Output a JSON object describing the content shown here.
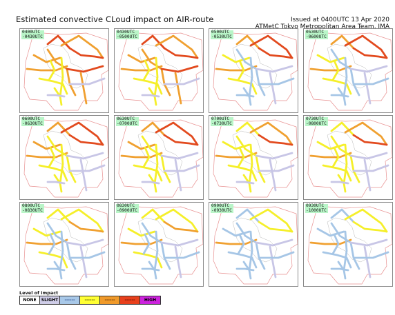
{
  "header": {
    "title": "Estimated convective CLoud impact on AIR-route",
    "issued": "Issued at 0400UTC 13 Apr 2020",
    "issuer": "ATMetC Tokyo Metropolitan Area Team, JMA"
  },
  "panels": [
    {
      "from": "0400UTC",
      "to": "-0430UTC",
      "levels": [
        "r",
        "o",
        "r",
        "o",
        "o",
        "y",
        "o",
        "r",
        "y",
        "o",
        "y",
        "s",
        "y",
        "s"
      ]
    },
    {
      "from": "0430UTC",
      "to": "-0500UTC",
      "levels": [
        "r",
        "o",
        "r",
        "o",
        "o",
        "y",
        "o",
        "r",
        "y",
        "o",
        "y",
        "s",
        "y",
        "s"
      ]
    },
    {
      "from": "0500UTC",
      "to": "-0530UTC",
      "levels": [
        "o",
        "r",
        "r",
        "y",
        "o",
        "y",
        "b",
        "s",
        "b",
        "s",
        "b",
        "b",
        "y",
        "b"
      ]
    },
    {
      "from": "0530UTC",
      "to": "-0600UTC",
      "levels": [
        "o",
        "r",
        "r",
        "y",
        "o",
        "y",
        "b",
        "s",
        "b",
        "s",
        "b",
        "b",
        "y",
        "b"
      ]
    },
    {
      "from": "0600UTC",
      "to": "-0630UTC",
      "levels": [
        "o",
        "r",
        "r",
        "o",
        "o",
        "y",
        "y",
        "s",
        "y",
        "s",
        "y",
        "s",
        "y",
        "s"
      ]
    },
    {
      "from": "0630UTC",
      "to": "-0700UTC",
      "levels": [
        "o",
        "r",
        "r",
        "o",
        "o",
        "y",
        "y",
        "s",
        "y",
        "s",
        "y",
        "s",
        "y",
        "s"
      ]
    },
    {
      "from": "0700UTC",
      "to": "-0730UTC",
      "levels": [
        "y",
        "o",
        "r",
        "y",
        "o",
        "y",
        "y",
        "s",
        "y",
        "s",
        "y",
        "s",
        "y",
        "s"
      ]
    },
    {
      "from": "0730UTC",
      "to": "-0800UTC",
      "levels": [
        "y",
        "o",
        "r",
        "y",
        "o",
        "y",
        "y",
        "s",
        "y",
        "s",
        "y",
        "s",
        "y",
        "s"
      ]
    },
    {
      "from": "0800UTC",
      "to": "-0830UTC",
      "levels": [
        "y",
        "y",
        "o",
        "y",
        "o",
        "y",
        "b",
        "s",
        "b",
        "s",
        "b",
        "b",
        "b",
        "b"
      ]
    },
    {
      "from": "0830UTC",
      "to": "-0900UTC",
      "levels": [
        "y",
        "y",
        "o",
        "y",
        "o",
        "y",
        "b",
        "s",
        "b",
        "s",
        "b",
        "b",
        "b",
        "b"
      ]
    },
    {
      "from": "0900UTC",
      "to": "-0930UTC",
      "levels": [
        "b",
        "y",
        "y",
        "b",
        "o",
        "b",
        "b",
        "s",
        "b",
        "s",
        "b",
        "b",
        "b",
        "b"
      ]
    },
    {
      "from": "0930UTC",
      "to": "-1000UTC",
      "levels": [
        "b",
        "y",
        "y",
        "b",
        "o",
        "b",
        "b",
        "s",
        "b",
        "s",
        "b",
        "b",
        "b",
        "b"
      ]
    }
  ],
  "legend": {
    "title": "Level of impact",
    "items": [
      {
        "label": "NONE",
        "bg": "#ffffff",
        "fg": "#000000"
      },
      {
        "label": "SLIGHT",
        "bg": "#cfcde8",
        "fg": "#000000"
      },
      {
        "label": "------",
        "bg": "#a8c8e8",
        "fg": "#2a4a8a"
      },
      {
        "label": "------",
        "bg": "#ffff33",
        "fg": "#444400"
      },
      {
        "label": "------",
        "bg": "#f09a2a",
        "fg": "#5a2a00"
      },
      {
        "label": "------",
        "bg": "#e8401c",
        "fg": "#5a0a00"
      },
      {
        "label": "HIGH",
        "bg": "#cc22dd",
        "fg": "#000000"
      }
    ]
  },
  "colors": {
    "s": "#c8c6e6",
    "b": "#a6c6e6",
    "y": "#f5ef2a",
    "o": "#f0a030",
    "r": "#e24a1e",
    "boundary": "#e89090",
    "coast": "#b8b8b8"
  }
}
